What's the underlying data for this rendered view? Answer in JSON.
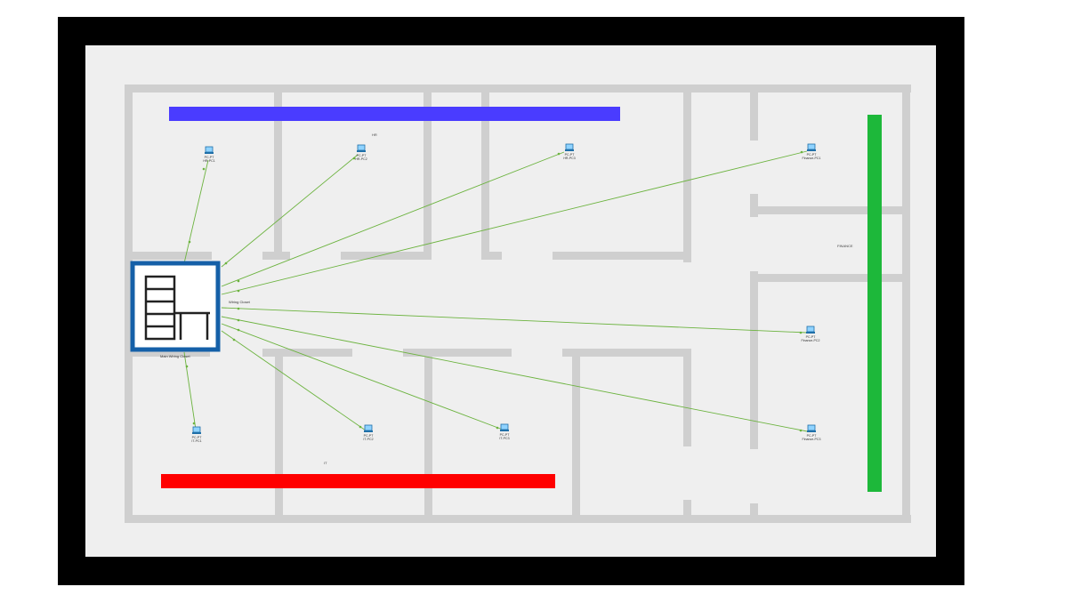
{
  "colors": {
    "frame": "#000000",
    "floor": "#efefef",
    "wall": "#cfcfcf",
    "zone_hr": "#4a3cff",
    "zone_it": "#ff0000",
    "zone_finance": "#1db83a",
    "cable": "#6cb33f",
    "cabinet_border": "#1560a8"
  },
  "rooms": {
    "hr": "HR",
    "it": "IT",
    "finance": "FINANCE"
  },
  "wiring_closet": {
    "icon": "wiring-closet-icon",
    "name": "Main Wiring Closet",
    "inner_label": "Wiring Closet"
  },
  "devices": [
    {
      "id": "hr1",
      "icon": "pc-icon",
      "model": "PC-PT",
      "name": "HR-PC1"
    },
    {
      "id": "hr2",
      "icon": "pc-icon",
      "model": "PC-PT",
      "name": "HR-PC2"
    },
    {
      "id": "hr3",
      "icon": "pc-icon",
      "model": "PC-PT",
      "name": "HR-PC3"
    },
    {
      "id": "fin1",
      "icon": "pc-icon",
      "model": "PC-PT",
      "name": "Finance-PC1"
    },
    {
      "id": "fin2",
      "icon": "pc-icon",
      "model": "PC-PT",
      "name": "Finance-PC2"
    },
    {
      "id": "fin3",
      "icon": "pc-icon",
      "model": "PC-PT",
      "name": "Finance-PC3"
    },
    {
      "id": "it1",
      "icon": "pc-icon",
      "model": "PC-PT",
      "name": "IT-PC1"
    },
    {
      "id": "it2",
      "icon": "pc-icon",
      "model": "PC-PT",
      "name": "IT-PC2"
    },
    {
      "id": "it3",
      "icon": "pc-icon",
      "model": "PC-PT",
      "name": "IT-PC3"
    }
  ]
}
